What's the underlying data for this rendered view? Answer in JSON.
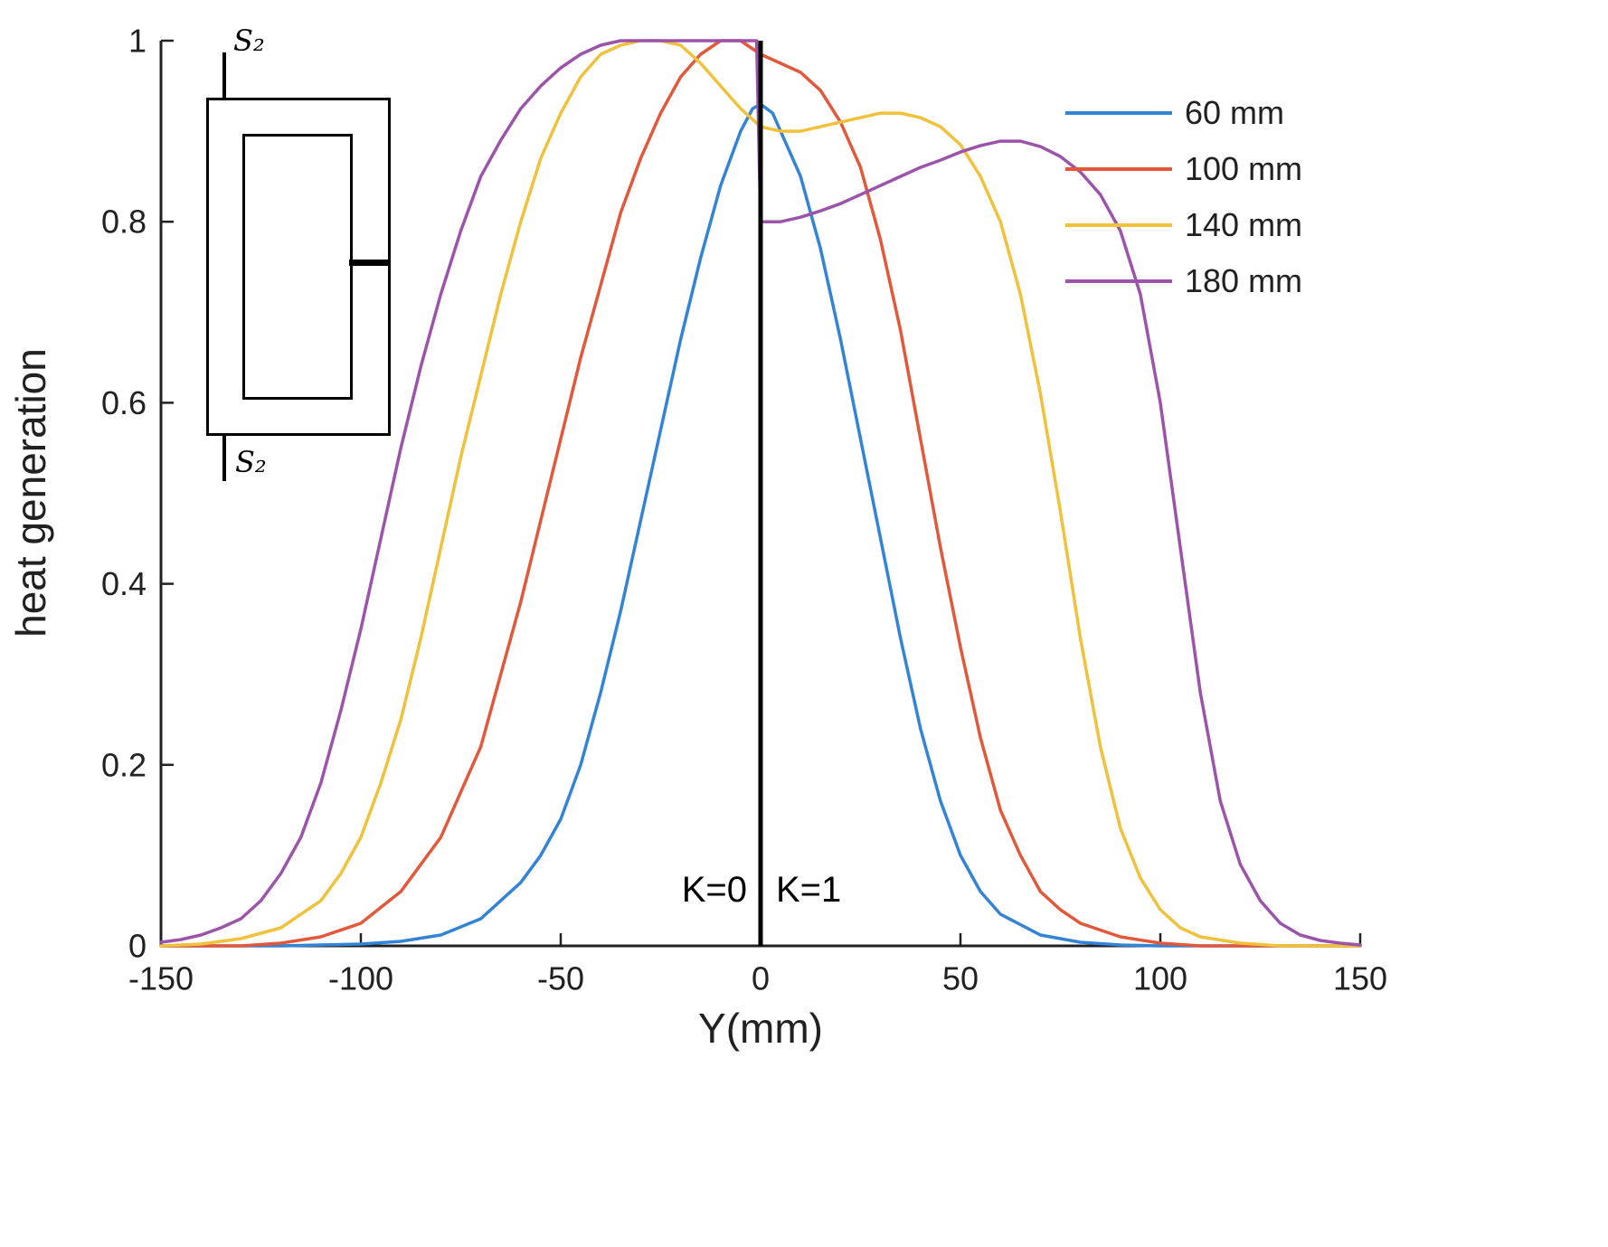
{
  "figure": {
    "background": "#ffffff",
    "inset": {
      "top_label": "S₂",
      "bottom_label": "S₂"
    }
  },
  "chart_data": {
    "type": "line",
    "title": "",
    "xlabel": "Y(mm)",
    "ylabel": "heat generation",
    "xlim": [
      -150,
      150
    ],
    "ylim": [
      0,
      1
    ],
    "x_ticks": [
      -150,
      -100,
      -50,
      0,
      50,
      100,
      150
    ],
    "y_ticks": [
      0,
      0.2,
      0.4,
      0.6,
      0.8,
      1
    ],
    "grid": false,
    "legend_position": "top-right",
    "axis_color": "#212121",
    "boundary_line_x": 0,
    "annotations": [
      {
        "text": "K=0",
        "x": -12,
        "y": 0.05,
        "align": "right"
      },
      {
        "text": "K=1",
        "x": 12,
        "y": 0.05,
        "align": "left"
      }
    ],
    "series": [
      {
        "name": "60 mm",
        "color": "#3383d6",
        "points": [
          [
            -150,
            0
          ],
          [
            -120,
            0
          ],
          [
            -100,
            0.002
          ],
          [
            -90,
            0.005
          ],
          [
            -80,
            0.012
          ],
          [
            -70,
            0.03
          ],
          [
            -60,
            0.07
          ],
          [
            -55,
            0.1
          ],
          [
            -50,
            0.14
          ],
          [
            -45,
            0.2
          ],
          [
            -40,
            0.28
          ],
          [
            -35,
            0.37
          ],
          [
            -30,
            0.47
          ],
          [
            -25,
            0.57
          ],
          [
            -20,
            0.67
          ],
          [
            -15,
            0.76
          ],
          [
            -10,
            0.84
          ],
          [
            -5,
            0.9
          ],
          [
            -2,
            0.925
          ],
          [
            0,
            0.93
          ],
          [
            3,
            0.92
          ],
          [
            5,
            0.9
          ],
          [
            10,
            0.85
          ],
          [
            15,
            0.77
          ],
          [
            20,
            0.67
          ],
          [
            25,
            0.56
          ],
          [
            30,
            0.45
          ],
          [
            35,
            0.34
          ],
          [
            40,
            0.24
          ],
          [
            45,
            0.16
          ],
          [
            50,
            0.1
          ],
          [
            55,
            0.06
          ],
          [
            60,
            0.035
          ],
          [
            70,
            0.012
          ],
          [
            80,
            0.004
          ],
          [
            90,
            0.001
          ],
          [
            100,
            0
          ],
          [
            150,
            0
          ]
        ]
      },
      {
        "name": "100 mm",
        "color": "#e2583b",
        "points": [
          [
            -150,
            0
          ],
          [
            -130,
            0
          ],
          [
            -120,
            0.003
          ],
          [
            -110,
            0.01
          ],
          [
            -100,
            0.025
          ],
          [
            -90,
            0.06
          ],
          [
            -80,
            0.12
          ],
          [
            -70,
            0.22
          ],
          [
            -65,
            0.3
          ],
          [
            -60,
            0.38
          ],
          [
            -55,
            0.47
          ],
          [
            -50,
            0.56
          ],
          [
            -45,
            0.65
          ],
          [
            -40,
            0.73
          ],
          [
            -35,
            0.81
          ],
          [
            -30,
            0.87
          ],
          [
            -25,
            0.92
          ],
          [
            -20,
            0.96
          ],
          [
            -15,
            0.985
          ],
          [
            -10,
            1
          ],
          [
            -5,
            1
          ],
          [
            0,
            0.985
          ],
          [
            5,
            0.975
          ],
          [
            10,
            0.965
          ],
          [
            15,
            0.945
          ],
          [
            20,
            0.91
          ],
          [
            25,
            0.86
          ],
          [
            30,
            0.78
          ],
          [
            35,
            0.68
          ],
          [
            40,
            0.56
          ],
          [
            45,
            0.44
          ],
          [
            50,
            0.33
          ],
          [
            55,
            0.23
          ],
          [
            60,
            0.15
          ],
          [
            65,
            0.1
          ],
          [
            70,
            0.06
          ],
          [
            75,
            0.04
          ],
          [
            80,
            0.025
          ],
          [
            90,
            0.01
          ],
          [
            100,
            0.003
          ],
          [
            110,
            0
          ],
          [
            150,
            0
          ]
        ]
      },
      {
        "name": "140 mm",
        "color": "#f0c23c",
        "points": [
          [
            -150,
            0
          ],
          [
            -140,
            0.002
          ],
          [
            -130,
            0.008
          ],
          [
            -120,
            0.02
          ],
          [
            -110,
            0.05
          ],
          [
            -105,
            0.08
          ],
          [
            -100,
            0.12
          ],
          [
            -95,
            0.18
          ],
          [
            -90,
            0.25
          ],
          [
            -85,
            0.34
          ],
          [
            -80,
            0.44
          ],
          [
            -75,
            0.54
          ],
          [
            -70,
            0.63
          ],
          [
            -65,
            0.72
          ],
          [
            -60,
            0.8
          ],
          [
            -55,
            0.87
          ],
          [
            -50,
            0.92
          ],
          [
            -45,
            0.96
          ],
          [
            -40,
            0.985
          ],
          [
            -35,
            0.995
          ],
          [
            -30,
            1
          ],
          [
            -25,
            1
          ],
          [
            -20,
            0.995
          ],
          [
            -15,
            0.975
          ],
          [
            -10,
            0.95
          ],
          [
            -5,
            0.925
          ],
          [
            0,
            0.905
          ],
          [
            5,
            0.9
          ],
          [
            10,
            0.9
          ],
          [
            15,
            0.905
          ],
          [
            20,
            0.91
          ],
          [
            25,
            0.915
          ],
          [
            30,
            0.92
          ],
          [
            35,
            0.92
          ],
          [
            40,
            0.915
          ],
          [
            45,
            0.905
          ],
          [
            50,
            0.885
          ],
          [
            55,
            0.85
          ],
          [
            60,
            0.8
          ],
          [
            65,
            0.72
          ],
          [
            70,
            0.61
          ],
          [
            75,
            0.48
          ],
          [
            80,
            0.34
          ],
          [
            85,
            0.22
          ],
          [
            90,
            0.13
          ],
          [
            95,
            0.075
          ],
          [
            100,
            0.04
          ],
          [
            105,
            0.02
          ],
          [
            110,
            0.01
          ],
          [
            120,
            0.003
          ],
          [
            130,
            0
          ],
          [
            150,
            0
          ]
        ]
      },
      {
        "name": "180 mm",
        "color": "#9c54ab",
        "points": [
          [
            -150,
            0.004
          ],
          [
            -145,
            0.007
          ],
          [
            -140,
            0.012
          ],
          [
            -135,
            0.02
          ],
          [
            -130,
            0.03
          ],
          [
            -125,
            0.05
          ],
          [
            -120,
            0.08
          ],
          [
            -115,
            0.12
          ],
          [
            -110,
            0.18
          ],
          [
            -105,
            0.26
          ],
          [
            -100,
            0.35
          ],
          [
            -95,
            0.45
          ],
          [
            -90,
            0.55
          ],
          [
            -85,
            0.64
          ],
          [
            -80,
            0.72
          ],
          [
            -75,
            0.79
          ],
          [
            -70,
            0.85
          ],
          [
            -65,
            0.89
          ],
          [
            -60,
            0.925
          ],
          [
            -55,
            0.95
          ],
          [
            -50,
            0.97
          ],
          [
            -45,
            0.985
          ],
          [
            -40,
            0.995
          ],
          [
            -35,
            1
          ],
          [
            -20,
            1
          ],
          [
            -10,
            1
          ],
          [
            -1,
            1
          ],
          [
            0,
            0.8
          ],
          [
            5,
            0.8
          ],
          [
            10,
            0.805
          ],
          [
            15,
            0.812
          ],
          [
            20,
            0.82
          ],
          [
            25,
            0.83
          ],
          [
            30,
            0.84
          ],
          [
            35,
            0.85
          ],
          [
            40,
            0.86
          ],
          [
            45,
            0.868
          ],
          [
            50,
            0.877
          ],
          [
            55,
            0.884
          ],
          [
            60,
            0.889
          ],
          [
            65,
            0.889
          ],
          [
            70,
            0.883
          ],
          [
            75,
            0.872
          ],
          [
            80,
            0.855
          ],
          [
            85,
            0.83
          ],
          [
            90,
            0.79
          ],
          [
            95,
            0.72
          ],
          [
            100,
            0.6
          ],
          [
            105,
            0.44
          ],
          [
            110,
            0.28
          ],
          [
            115,
            0.16
          ],
          [
            120,
            0.09
          ],
          [
            125,
            0.05
          ],
          [
            130,
            0.025
          ],
          [
            135,
            0.012
          ],
          [
            140,
            0.006
          ],
          [
            145,
            0.003
          ],
          [
            150,
            0.001
          ]
        ]
      }
    ]
  }
}
